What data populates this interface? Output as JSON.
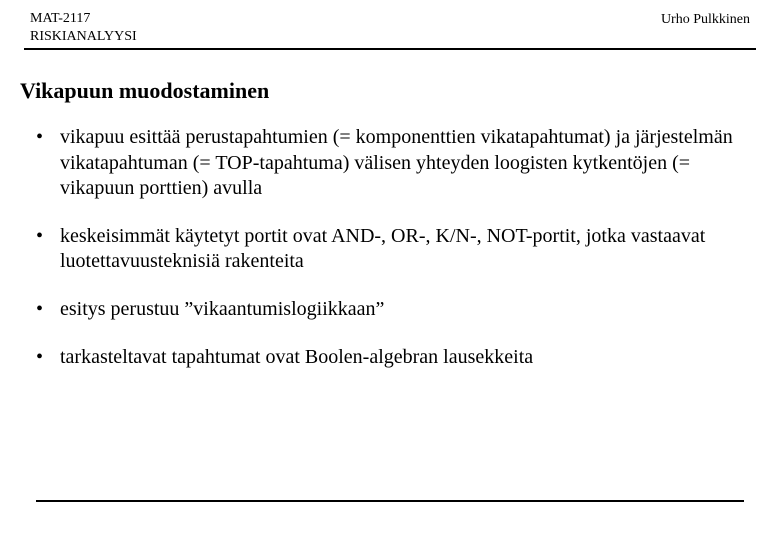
{
  "header": {
    "course_code": "MAT-2117",
    "course_name": "RISKIANALYYSI",
    "author": "Urho Pulkkinen"
  },
  "title": "Vikapuun muodostaminen",
  "bullets": [
    "vikapuu esittää perustapahtumien (= komponenttien vikatapahtumat) ja järjestelmän vikatapahtuman (= TOP-tapahtuma) välisen yhteyden loogisten kytkentöjen (= vikapuun porttien) avulla",
    "keskeisimmät käytetyt portit ovat AND-, OR-, K/N-, NOT-portit, jotka vastaavat luotettavuusteknisiä rakenteita",
    "esitys perustuu ”vikaantumislogiikkaan”",
    "tarkasteltavat tapahtumat ovat Boolen-algebran lausekkeita"
  ],
  "colors": {
    "text": "#000000",
    "background": "#ffffff",
    "rule": "#000000"
  }
}
